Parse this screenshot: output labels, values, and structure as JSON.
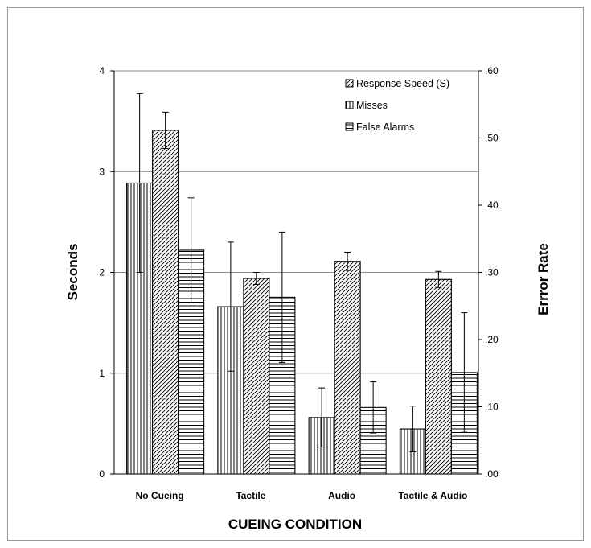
{
  "chart_data": {
    "type": "bar",
    "categories": [
      "No Cueing",
      "Tactile",
      "Audio",
      "Tactile & Audio"
    ],
    "xlabel": "CUEING CONDITION",
    "ylabel_left": "Seconds",
    "ylabel_right": "Errror Rate",
    "left_axis": {
      "ylim": [
        0,
        4
      ],
      "ticks": [
        "0",
        "1",
        "2",
        "3",
        "4"
      ]
    },
    "right_axis": {
      "ylim": [
        0,
        0.6
      ],
      "ticks": [
        ".00",
        ".10",
        ".20",
        ".30",
        ".40",
        ".50",
        ".60"
      ]
    },
    "grid": true,
    "legend_position": "top-right",
    "series": [
      {
        "name": "Response Speed (S)",
        "axis": "left",
        "pattern": "diagonal",
        "values": [
          3.41,
          1.94,
          2.11,
          1.93
        ],
        "error": [
          0.18,
          0.06,
          0.09,
          0.08
        ]
      },
      {
        "name": "Misses",
        "axis": "right",
        "pattern": "vertical",
        "values": [
          0.433,
          0.249,
          0.084,
          0.067
        ],
        "error": [
          0.133,
          0.096,
          0.044,
          0.034
        ]
      },
      {
        "name": "False Alarms",
        "axis": "right",
        "pattern": "horizontal",
        "values": [
          0.333,
          0.263,
          0.099,
          0.151
        ],
        "error": [
          0.078,
          0.097,
          0.038,
          0.089
        ]
      }
    ]
  }
}
